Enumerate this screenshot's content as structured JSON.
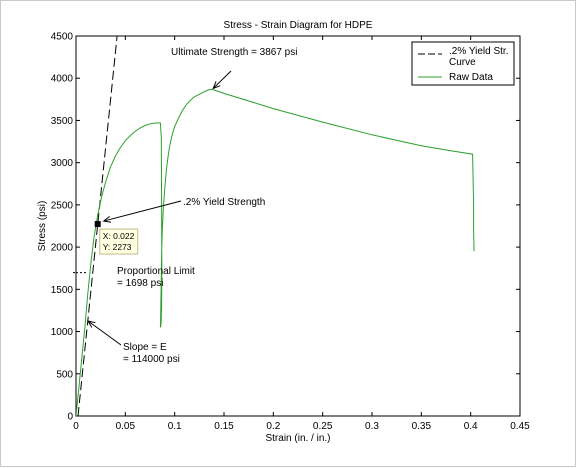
{
  "chart_data": {
    "type": "line",
    "title": "Stress - Strain Diagram for HDPE",
    "xlabel": "Strain (in. / in.)",
    "ylabel": "Stress (psi)",
    "xlim": [
      0,
      0.45
    ],
    "ylim": [
      0,
      4500
    ],
    "xticks": [
      0,
      0.05,
      0.1,
      0.15,
      0.2,
      0.25,
      0.3,
      0.35,
      0.4,
      0.45
    ],
    "xtick_labels": [
      "0",
      "0.05",
      "0.1",
      "0.15",
      "0.2",
      "0.25",
      "0.3",
      "0.35",
      "0.4",
      "0.45"
    ],
    "yticks": [
      0,
      500,
      1000,
      1500,
      2000,
      2500,
      3000,
      3500,
      4000,
      4500
    ],
    "ytick_labels": [
      "0",
      "500",
      "1000",
      "1500",
      "2000",
      "2500",
      "3000",
      "3500",
      "4000",
      "4500"
    ],
    "grid": false,
    "legend": {
      "placement": "top-right",
      "entries": [
        {
          "label_line1": ".2% Yield Str.",
          "label_line2": "Curve",
          "style": "dashed",
          "color": "#000000"
        },
        {
          "label_line1": "Raw Data",
          "label_line2": "",
          "style": "solid",
          "color": "#2ca02c"
        }
      ]
    },
    "series": [
      {
        "key": "yield_curve",
        "color": "#000000",
        "dash": "dashed",
        "x": [
          0.002,
          0.0417
        ],
        "y": [
          0,
          4500
        ]
      },
      {
        "key": "raw_data",
        "color": "#2ca02c",
        "dash": "solid",
        "x": [
          0,
          0.003,
          0.006,
          0.009,
          0.012,
          0.015,
          0.018,
          0.022,
          0.026,
          0.03,
          0.035,
          0.04,
          0.045,
          0.05,
          0.055,
          0.06,
          0.065,
          0.07,
          0.075,
          0.08,
          0.0855,
          0.0865,
          0.0868,
          0.087,
          0.0868,
          0.0864,
          0.0858,
          0.0855,
          0.0858,
          0.0862,
          0.0868,
          0.0875,
          0.0885,
          0.09,
          0.0915,
          0.093,
          0.095,
          0.0975,
          0.1,
          0.104,
          0.108,
          0.112,
          0.116,
          0.12,
          0.125,
          0.13,
          0.134,
          0.136,
          0.138,
          0.14,
          0.15,
          0.2,
          0.25,
          0.3,
          0.35,
          0.38,
          0.402,
          0.403,
          0.403,
          0.4035
        ],
        "y": [
          0,
          350,
          700,
          1050,
          1450,
          1800,
          2100,
          2380,
          2600,
          2770,
          2950,
          3080,
          3180,
          3260,
          3320,
          3370,
          3410,
          3440,
          3460,
          3470,
          3470,
          3300,
          2500,
          1800,
          1300,
          1120,
          1060,
          1050,
          1200,
          1500,
          1900,
          2200,
          2450,
          2700,
          2900,
          3050,
          3200,
          3330,
          3430,
          3530,
          3620,
          3690,
          3740,
          3780,
          3810,
          3840,
          3860,
          3865,
          3867,
          3860,
          3820,
          3640,
          3480,
          3330,
          3200,
          3140,
          3100,
          2500,
          2200,
          1950
        ]
      }
    ],
    "annotations": [
      {
        "key": "ultimate",
        "text": "Ultimate Strength = 3867 psi",
        "point": [
          0.138,
          3867
        ]
      },
      {
        "key": "yield",
        "text": ".2% Yield Strength",
        "point": [
          0.022,
          2273
        ]
      },
      {
        "key": "prop_line1",
        "text": "Proportional Limit"
      },
      {
        "key": "prop_line2",
        "text": "= 1698 psi"
      },
      {
        "key": "slope_line1",
        "text": "Slope = E"
      },
      {
        "key": "slope_line2",
        "text": "= 114000 psi"
      }
    ],
    "proportional_limit": {
      "y": 1698,
      "x_end": 0.012
    },
    "datatip": {
      "x": 0.022,
      "y": 2273,
      "line1": "X: 0.022",
      "line2": "Y: 2273"
    }
  }
}
